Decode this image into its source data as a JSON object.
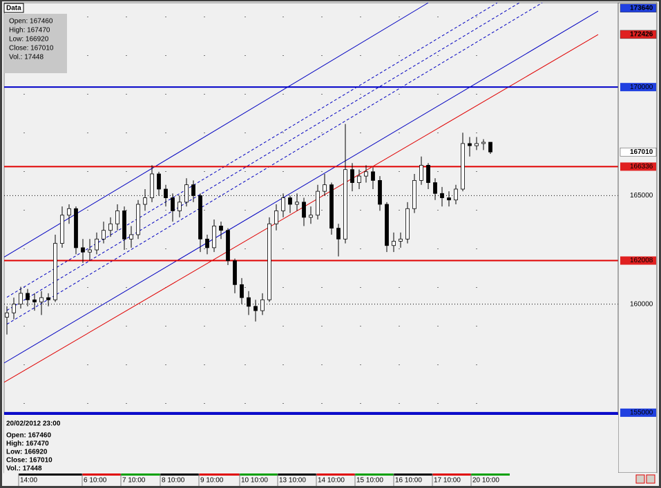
{
  "chart_data": {
    "type": "candlestick",
    "info_title": "Data",
    "info_lines": [
      "Open: 167460",
      "High: 167470",
      "Low: 166920",
      "Close: 167010",
      "Vol.: 17448"
    ],
    "panel_date": "20/02/2012 23:00",
    "panel_lines": [
      "Open: 167460",
      "High: 167470",
      "Low: 166920",
      "Close: 167010",
      "Vol.: 17448"
    ],
    "xlim": [
      -0.4,
      88.5
    ],
    "ylim": [
      152230,
      173885
    ],
    "xticks": [
      {
        "value": 2.5,
        "label": "14:00"
      },
      {
        "value": 11.7,
        "label": "6 10:00"
      },
      {
        "value": 17.3,
        "label": "7 10:00"
      },
      {
        "value": 23,
        "label": "8 10:00"
      },
      {
        "value": 28.6,
        "label": "9 10:00"
      },
      {
        "value": 34.5,
        "label": "10 10:00"
      },
      {
        "value": 40,
        "label": "13 10:00"
      },
      {
        "value": 45.6,
        "label": "14 10:00"
      },
      {
        "value": 51.2,
        "label": "15 10:00"
      },
      {
        "value": 56.8,
        "label": "16 10:00"
      },
      {
        "value": 62.4,
        "label": "17 10:00"
      },
      {
        "value": 68,
        "label": "20 10:00"
      }
    ],
    "yticks": [
      160000,
      165000
    ],
    "grid": true,
    "levels": [
      {
        "value": 170000,
        "color": "#0000c8"
      },
      {
        "value": 166336,
        "color": "#e00000"
      },
      {
        "value": 162008,
        "color": "#e00000"
      },
      {
        "value": 155000,
        "color": "#0000c8"
      }
    ],
    "price_labels": [
      {
        "value": 173640,
        "color": "#2040e0"
      },
      {
        "value": 172426,
        "color": "#e02020"
      },
      {
        "value": 167010,
        "color": "#ffffff"
      }
    ],
    "trendlines": [
      {
        "points": [
          [
            -0.4,
            162170
          ],
          [
            61,
            173885
          ]
        ],
        "color": "#0000c0",
        "dashed": false
      },
      {
        "points": [
          [
            -0.4,
            157290
          ],
          [
            85.6,
            173500
          ]
        ],
        "color": "#0000c0",
        "dashed": false
      },
      {
        "points": [
          [
            -0.4,
            156400
          ],
          [
            85.6,
            172420
          ]
        ],
        "color": "#e00000",
        "dashed": false
      },
      {
        "points": [
          [
            0,
            160318
          ],
          [
            71,
            173885
          ]
        ],
        "color": "#0000c0",
        "dashed": true
      },
      {
        "points": [
          [
            0,
            159713
          ],
          [
            74.2,
            173885
          ]
        ],
        "color": "#0000c0",
        "dashed": true
      },
      {
        "points": [
          [
            0,
            159076
          ],
          [
            77.5,
            173885
          ]
        ],
        "color": "#0000c0",
        "dashed": true
      }
    ],
    "ohlc": [
      [
        159400,
        159900,
        158600,
        159600
      ],
      [
        159600,
        160300,
        159300,
        160000
      ],
      [
        160000,
        160800,
        159800,
        160500
      ],
      [
        160500,
        160700,
        159900,
        160200
      ],
      [
        160200,
        160500,
        159700,
        160100
      ],
      [
        160100,
        160600,
        159500,
        160300
      ],
      [
        160300,
        160500,
        159900,
        160200
      ],
      [
        160200,
        163200,
        160100,
        162800
      ],
      [
        162800,
        164500,
        162600,
        164100
      ],
      [
        164100,
        164600,
        163700,
        164400
      ],
      [
        164400,
        164500,
        162300,
        162600
      ],
      [
        162600,
        163000,
        161900,
        162400
      ],
      [
        162400,
        163000,
        162000,
        162500
      ],
      [
        162500,
        163300,
        162300,
        163000
      ],
      [
        163000,
        163800,
        162800,
        163400
      ],
      [
        163400,
        164000,
        163100,
        163700
      ],
      [
        163700,
        164600,
        163400,
        164300
      ],
      [
        164300,
        164500,
        162500,
        163000
      ],
      [
        163000,
        163600,
        162600,
        163200
      ],
      [
        163200,
        164800,
        163000,
        164600
      ],
      [
        164600,
        165300,
        164300,
        164900
      ],
      [
        164900,
        166400,
        164700,
        166000
      ],
      [
        166000,
        166100,
        165000,
        165300
      ],
      [
        165300,
        165500,
        164500,
        164900
      ],
      [
        164900,
        165100,
        163800,
        164300
      ],
      [
        164300,
        165000,
        164000,
        164700
      ],
      [
        164700,
        165800,
        164500,
        165500
      ],
      [
        165500,
        165700,
        164700,
        165000
      ],
      [
        165000,
        165100,
        162400,
        163000
      ],
      [
        163000,
        163200,
        162300,
        162600
      ],
      [
        162600,
        163900,
        162400,
        163600
      ],
      [
        163600,
        163800,
        163000,
        163400
      ],
      [
        163400,
        163500,
        161800,
        162000
      ],
      [
        162000,
        162100,
        160500,
        160900
      ],
      [
        160900,
        161200,
        160000,
        160300
      ],
      [
        160300,
        160600,
        159500,
        159900
      ],
      [
        159900,
        160200,
        159200,
        159700
      ],
      [
        159700,
        160500,
        159500,
        160200
      ],
      [
        160200,
        164000,
        160100,
        163700
      ],
      [
        163700,
        164600,
        163400,
        164300
      ],
      [
        164300,
        165100,
        164000,
        164900
      ],
      [
        164900,
        165000,
        164200,
        164600
      ],
      [
        164600,
        165100,
        164300,
        164700
      ],
      [
        164700,
        164900,
        163600,
        164000
      ],
      [
        164000,
        164500,
        163700,
        164100
      ],
      [
        164100,
        165500,
        163900,
        165200
      ],
      [
        165200,
        166000,
        165000,
        165500
      ],
      [
        165500,
        165600,
        163200,
        163500
      ],
      [
        163500,
        163700,
        162200,
        163000
      ],
      [
        163000,
        168300,
        162800,
        166200
      ],
      [
        166200,
        166500,
        165200,
        165600
      ],
      [
        165600,
        166200,
        165300,
        165900
      ],
      [
        165900,
        166400,
        165600,
        166100
      ],
      [
        166100,
        166300,
        165300,
        165700
      ],
      [
        165700,
        165900,
        164300,
        164600
      ],
      [
        164600,
        164700,
        162400,
        162700
      ],
      [
        162700,
        163300,
        162400,
        162900
      ],
      [
        162900,
        163300,
        162600,
        163000
      ],
      [
        163000,
        164700,
        162800,
        164400
      ],
      [
        164400,
        166000,
        164200,
        165700
      ],
      [
        165700,
        166800,
        165500,
        166400
      ],
      [
        166400,
        166500,
        165300,
        165600
      ],
      [
        165600,
        165800,
        164800,
        165100
      ],
      [
        165100,
        165400,
        164500,
        164900
      ],
      [
        164900,
        165200,
        164500,
        164800
      ],
      [
        164800,
        165500,
        164600,
        165300
      ],
      [
        165300,
        167900,
        165200,
        167400
      ],
      [
        167400,
        167700,
        166800,
        167300
      ],
      [
        167300,
        167700,
        167100,
        167400
      ],
      [
        167400,
        167600,
        167100,
        167460
      ],
      [
        167460,
        167470,
        166920,
        167010
      ]
    ]
  }
}
